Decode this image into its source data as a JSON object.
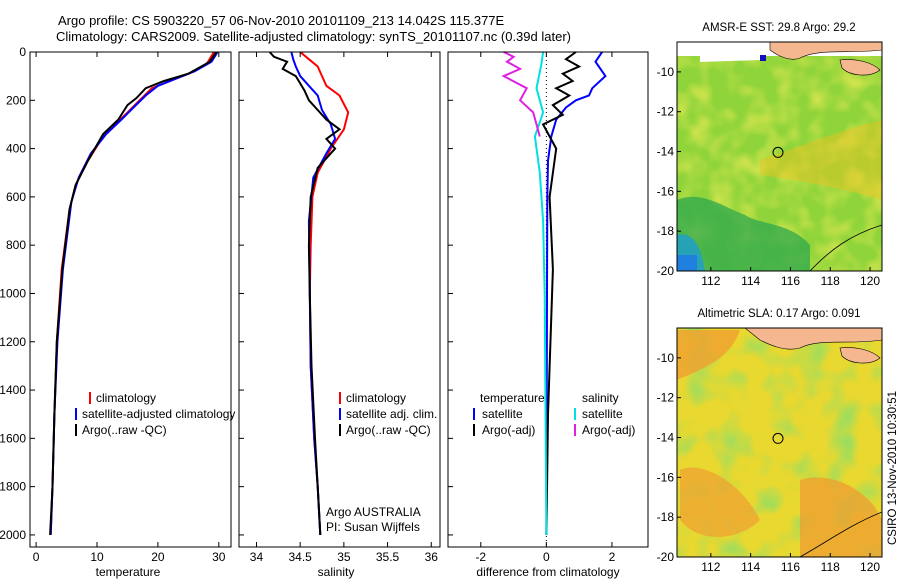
{
  "title_line1": "Argo profile: CS 5903220_57 06-Nov-2010 20101109_213 14.042S 115.377E",
  "title_line2": "Climatology: CARS2009. Satellite-adjusted climatology: synTS_20101107.nc (0.39d later)",
  "side_label": "CSIRO 13-Nov-2010 10:30:51",
  "chart_data": [
    {
      "type": "line",
      "name": "temperature-profile",
      "xlabel": "temperature",
      "ylabel": "",
      "xlim": [
        -1,
        32
      ],
      "ylim": [
        0,
        2050
      ],
      "xticks": [
        0,
        10,
        20,
        30
      ],
      "yticks": [
        0,
        200,
        400,
        600,
        800,
        1000,
        1200,
        1400,
        1600,
        1800,
        2000
      ],
      "legend": [
        "climatology",
        "satellite-adjusted climatology",
        "Argo(..raw -QC)"
      ],
      "series": [
        {
          "name": "climatology",
          "color": "#ff0000",
          "x": [
            29.2,
            28,
            25,
            22,
            19,
            17,
            15,
            13,
            11,
            8.5,
            6.5,
            5.5,
            4.2,
            3.4,
            3.0,
            2.7,
            2.4
          ],
          "y": [
            0,
            50,
            90,
            120,
            150,
            200,
            250,
            300,
            350,
            450,
            550,
            650,
            900,
            1200,
            1500,
            1800,
            2000
          ]
        },
        {
          "name": "satellite-adjusted climatology",
          "color": "#0000ff",
          "x": [
            29.8,
            28.8,
            26,
            23,
            20,
            18,
            16,
            14,
            11.5,
            9,
            7,
            5.8,
            4.4,
            3.5,
            3.0,
            2.7,
            2.4
          ],
          "y": [
            0,
            40,
            80,
            110,
            140,
            180,
            230,
            280,
            340,
            420,
            520,
            620,
            900,
            1200,
            1500,
            1800,
            2000
          ]
        },
        {
          "name": "Argo(..raw -QC)",
          "color": "#000000",
          "x": [
            29.6,
            28.5,
            25,
            21,
            18,
            16.5,
            15,
            13.5,
            11,
            8.5,
            6.5,
            5.5,
            4.3,
            3.4,
            3.0,
            2.7,
            2.3
          ],
          "y": [
            0,
            40,
            90,
            120,
            150,
            190,
            220,
            280,
            340,
            450,
            550,
            650,
            900,
            1200,
            1500,
            1800,
            2000
          ]
        }
      ]
    },
    {
      "type": "line",
      "name": "salinity-profile",
      "xlabel": "salinity",
      "xlim": [
        33.8,
        36.1
      ],
      "ylim": [
        0,
        2050
      ],
      "xticks": [
        34,
        34.5,
        35,
        35.5,
        36
      ],
      "legend": [
        "climatology",
        "satellite adj. clim.",
        "Argo(..raw -QC)"
      ],
      "annotation": [
        "Argo AUSTRALIA",
        "PI: Susan Wijffels"
      ],
      "series": [
        {
          "name": "climatology",
          "color": "#ff0000",
          "x": [
            34.5,
            34.6,
            34.7,
            34.75,
            34.8,
            34.95,
            35.05,
            35.0,
            34.85,
            34.7,
            34.64,
            34.62,
            34.61,
            34.62,
            34.66,
            34.7,
            34.73
          ],
          "y": [
            0,
            30,
            60,
            100,
            140,
            180,
            250,
            320,
            400,
            500,
            600,
            800,
            1000,
            1300,
            1600,
            1800,
            2000
          ]
        },
        {
          "name": "satellite adj. clim.",
          "color": "#0000ff",
          "x": [
            34.4,
            34.42,
            34.45,
            34.5,
            34.6,
            34.7,
            34.75,
            34.85,
            34.9,
            34.8,
            34.65,
            34.6,
            34.61,
            34.62,
            34.66,
            34.7,
            34.73
          ],
          "y": [
            0,
            30,
            60,
            100,
            140,
            180,
            240,
            300,
            360,
            420,
            520,
            700,
            1000,
            1300,
            1600,
            1800,
            2000
          ]
        },
        {
          "name": "Argo(..raw -QC)",
          "color": "#000000",
          "x": [
            34.15,
            34.2,
            34.35,
            34.3,
            34.45,
            34.5,
            34.55,
            34.6,
            34.7,
            34.8,
            34.95,
            34.8,
            34.9,
            34.7,
            34.62,
            34.6,
            34.61,
            34.63,
            34.67,
            34.7,
            34.73
          ],
          "y": [
            0,
            20,
            40,
            70,
            100,
            130,
            160,
            200,
            240,
            280,
            320,
            360,
            400,
            480,
            600,
            800,
            1000,
            1300,
            1600,
            1800,
            2000
          ]
        }
      ]
    },
    {
      "type": "line",
      "name": "difference-profile",
      "xlabel": "difference from climatology",
      "xlim": [
        -3,
        3.1
      ],
      "ylim": [
        0,
        2050
      ],
      "xticks": [
        -2,
        0,
        2
      ],
      "legend_temperature_heading": "temperature",
      "legend_salinity_heading": "salinity",
      "legend": [
        "satellite",
        "Argo(-adj)",
        "satellite",
        "Argo(-adj)"
      ],
      "series": [
        {
          "name": "temperature satellite",
          "color": "#0000ff",
          "x": [
            1.7,
            1.5,
            1.8,
            1.4,
            1.3,
            0.9,
            0.6,
            0.3,
            0.15,
            0.05,
            0.03,
            0.02,
            0.0
          ],
          "y": [
            0,
            40,
            100,
            150,
            180,
            200,
            230,
            280,
            350,
            450,
            600,
            1000,
            2000
          ]
        },
        {
          "name": "temperature Argo(-adj)",
          "color": "#000000",
          "x": [
            0.9,
            0.6,
            1.0,
            0.5,
            0.8,
            0.3,
            0.7,
            0.2,
            0.5,
            -0.1,
            0.3,
            0.1,
            0.2,
            0.05,
            0.0
          ],
          "y": [
            0,
            30,
            60,
            90,
            120,
            150,
            180,
            220,
            260,
            300,
            400,
            600,
            900,
            1500,
            2000
          ]
        },
        {
          "name": "salinity satellite",
          "color": "#00e0e0",
          "x": [
            -0.1,
            -0.15,
            -0.3,
            -0.1,
            -0.35,
            -0.2,
            -0.1,
            -0.05,
            0.0
          ],
          "y": [
            0,
            50,
            150,
            250,
            350,
            500,
            700,
            1000,
            2000
          ]
        },
        {
          "name": "salinity Argo(-adj)",
          "color": "#e020e0",
          "x": [
            -1.3,
            -1.0,
            -1.2,
            -0.8,
            -1.3,
            -0.6,
            -0.8,
            -0.4,
            -0.3,
            -0.2
          ],
          "y": [
            0,
            20,
            40,
            70,
            100,
            150,
            200,
            250,
            300,
            350
          ]
        }
      ]
    },
    {
      "type": "heatmap",
      "name": "sst-map",
      "title": "AMSR-E SST: 29.8 Argo: 29.2",
      "xlim": [
        110.3,
        120.6
      ],
      "ylim": [
        -20,
        -8.5
      ],
      "xticks": [
        112,
        114,
        116,
        118,
        120
      ],
      "yticks": [
        -10,
        -12,
        -14,
        -16,
        -18,
        -20
      ],
      "marker": {
        "lon": 115.377,
        "lat": -14.042
      }
    },
    {
      "type": "heatmap",
      "name": "sla-map",
      "title": "Altimetric SLA: 0.17 Argo: 0.091",
      "xlim": [
        110.3,
        120.6
      ],
      "ylim": [
        -20,
        -8.5
      ],
      "xticks": [
        112,
        114,
        116,
        118,
        120
      ],
      "yticks": [
        -10,
        -12,
        -14,
        -16,
        -18,
        -20
      ],
      "marker": {
        "lon": 115.377,
        "lat": -14.042
      }
    }
  ]
}
